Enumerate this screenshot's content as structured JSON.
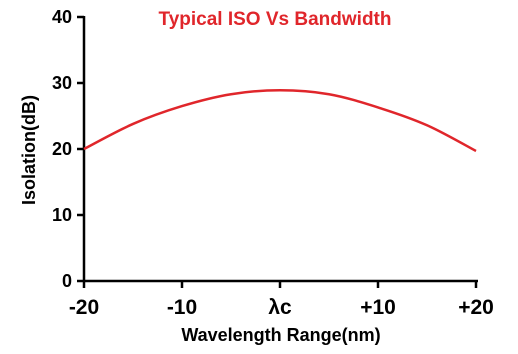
{
  "chart_data": {
    "type": "line",
    "title": "Typical ISO Vs Bandwidth",
    "xlabel": "Wavelength Range(nm)",
    "ylabel": "Isolation(dB)",
    "xlim": [
      -20,
      20
    ],
    "ylim": [
      0,
      40
    ],
    "x_ticks": [
      -20,
      -10,
      0,
      10,
      20
    ],
    "x_tick_labels": [
      "-20",
      "-10",
      "λc",
      "+10",
      "+20"
    ],
    "y_ticks": [
      0,
      10,
      20,
      30,
      40
    ],
    "y_tick_labels": [
      "0",
      "10",
      "20",
      "30",
      "40"
    ],
    "grid": false,
    "series": [
      {
        "color": "#e0262b",
        "x": [
          -20,
          -15,
          -10,
          -5,
          0,
          5,
          10,
          15,
          20
        ],
        "y": [
          20,
          23.8,
          26.5,
          28.3,
          28.9,
          28.3,
          26.3,
          23.6,
          19.7
        ]
      }
    ],
    "colors": {
      "title": "#e0262b",
      "axis": "#000000"
    }
  }
}
